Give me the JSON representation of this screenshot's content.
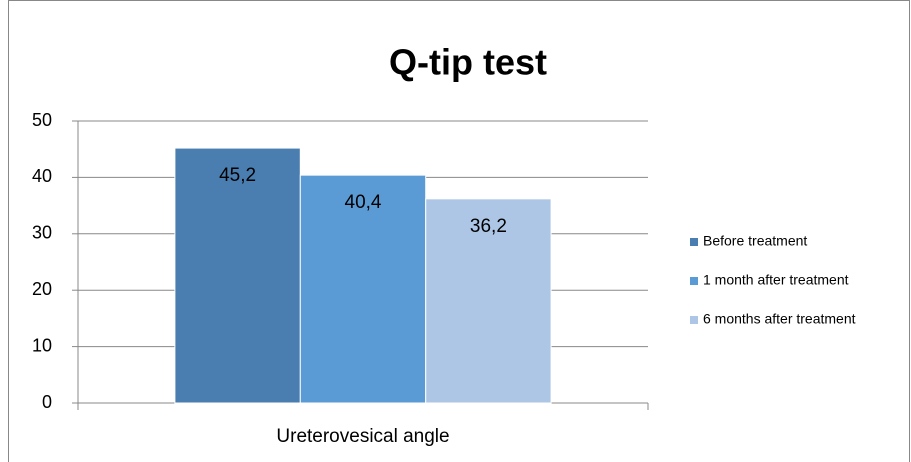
{
  "chart_data": {
    "type": "bar",
    "title": "Q-tip test",
    "categories": [
      "Ureterovesical angle"
    ],
    "series": [
      {
        "name": "Before treatment",
        "color": "#4a7eb0",
        "values": [
          45.2
        ],
        "value_labels": [
          "45,2"
        ]
      },
      {
        "name": "1 month after treatment",
        "color": "#5b9bd5",
        "values": [
          40.4
        ],
        "value_labels": [
          "40,4"
        ]
      },
      {
        "name": "6 months after treatment",
        "color": "#adc6e6",
        "values": [
          36.2
        ],
        "value_labels": [
          "36,2"
        ]
      }
    ],
    "ylim": [
      0,
      50
    ],
    "yticks": [
      0,
      10,
      20,
      30,
      40,
      50
    ],
    "grid": true,
    "legend": "right"
  }
}
